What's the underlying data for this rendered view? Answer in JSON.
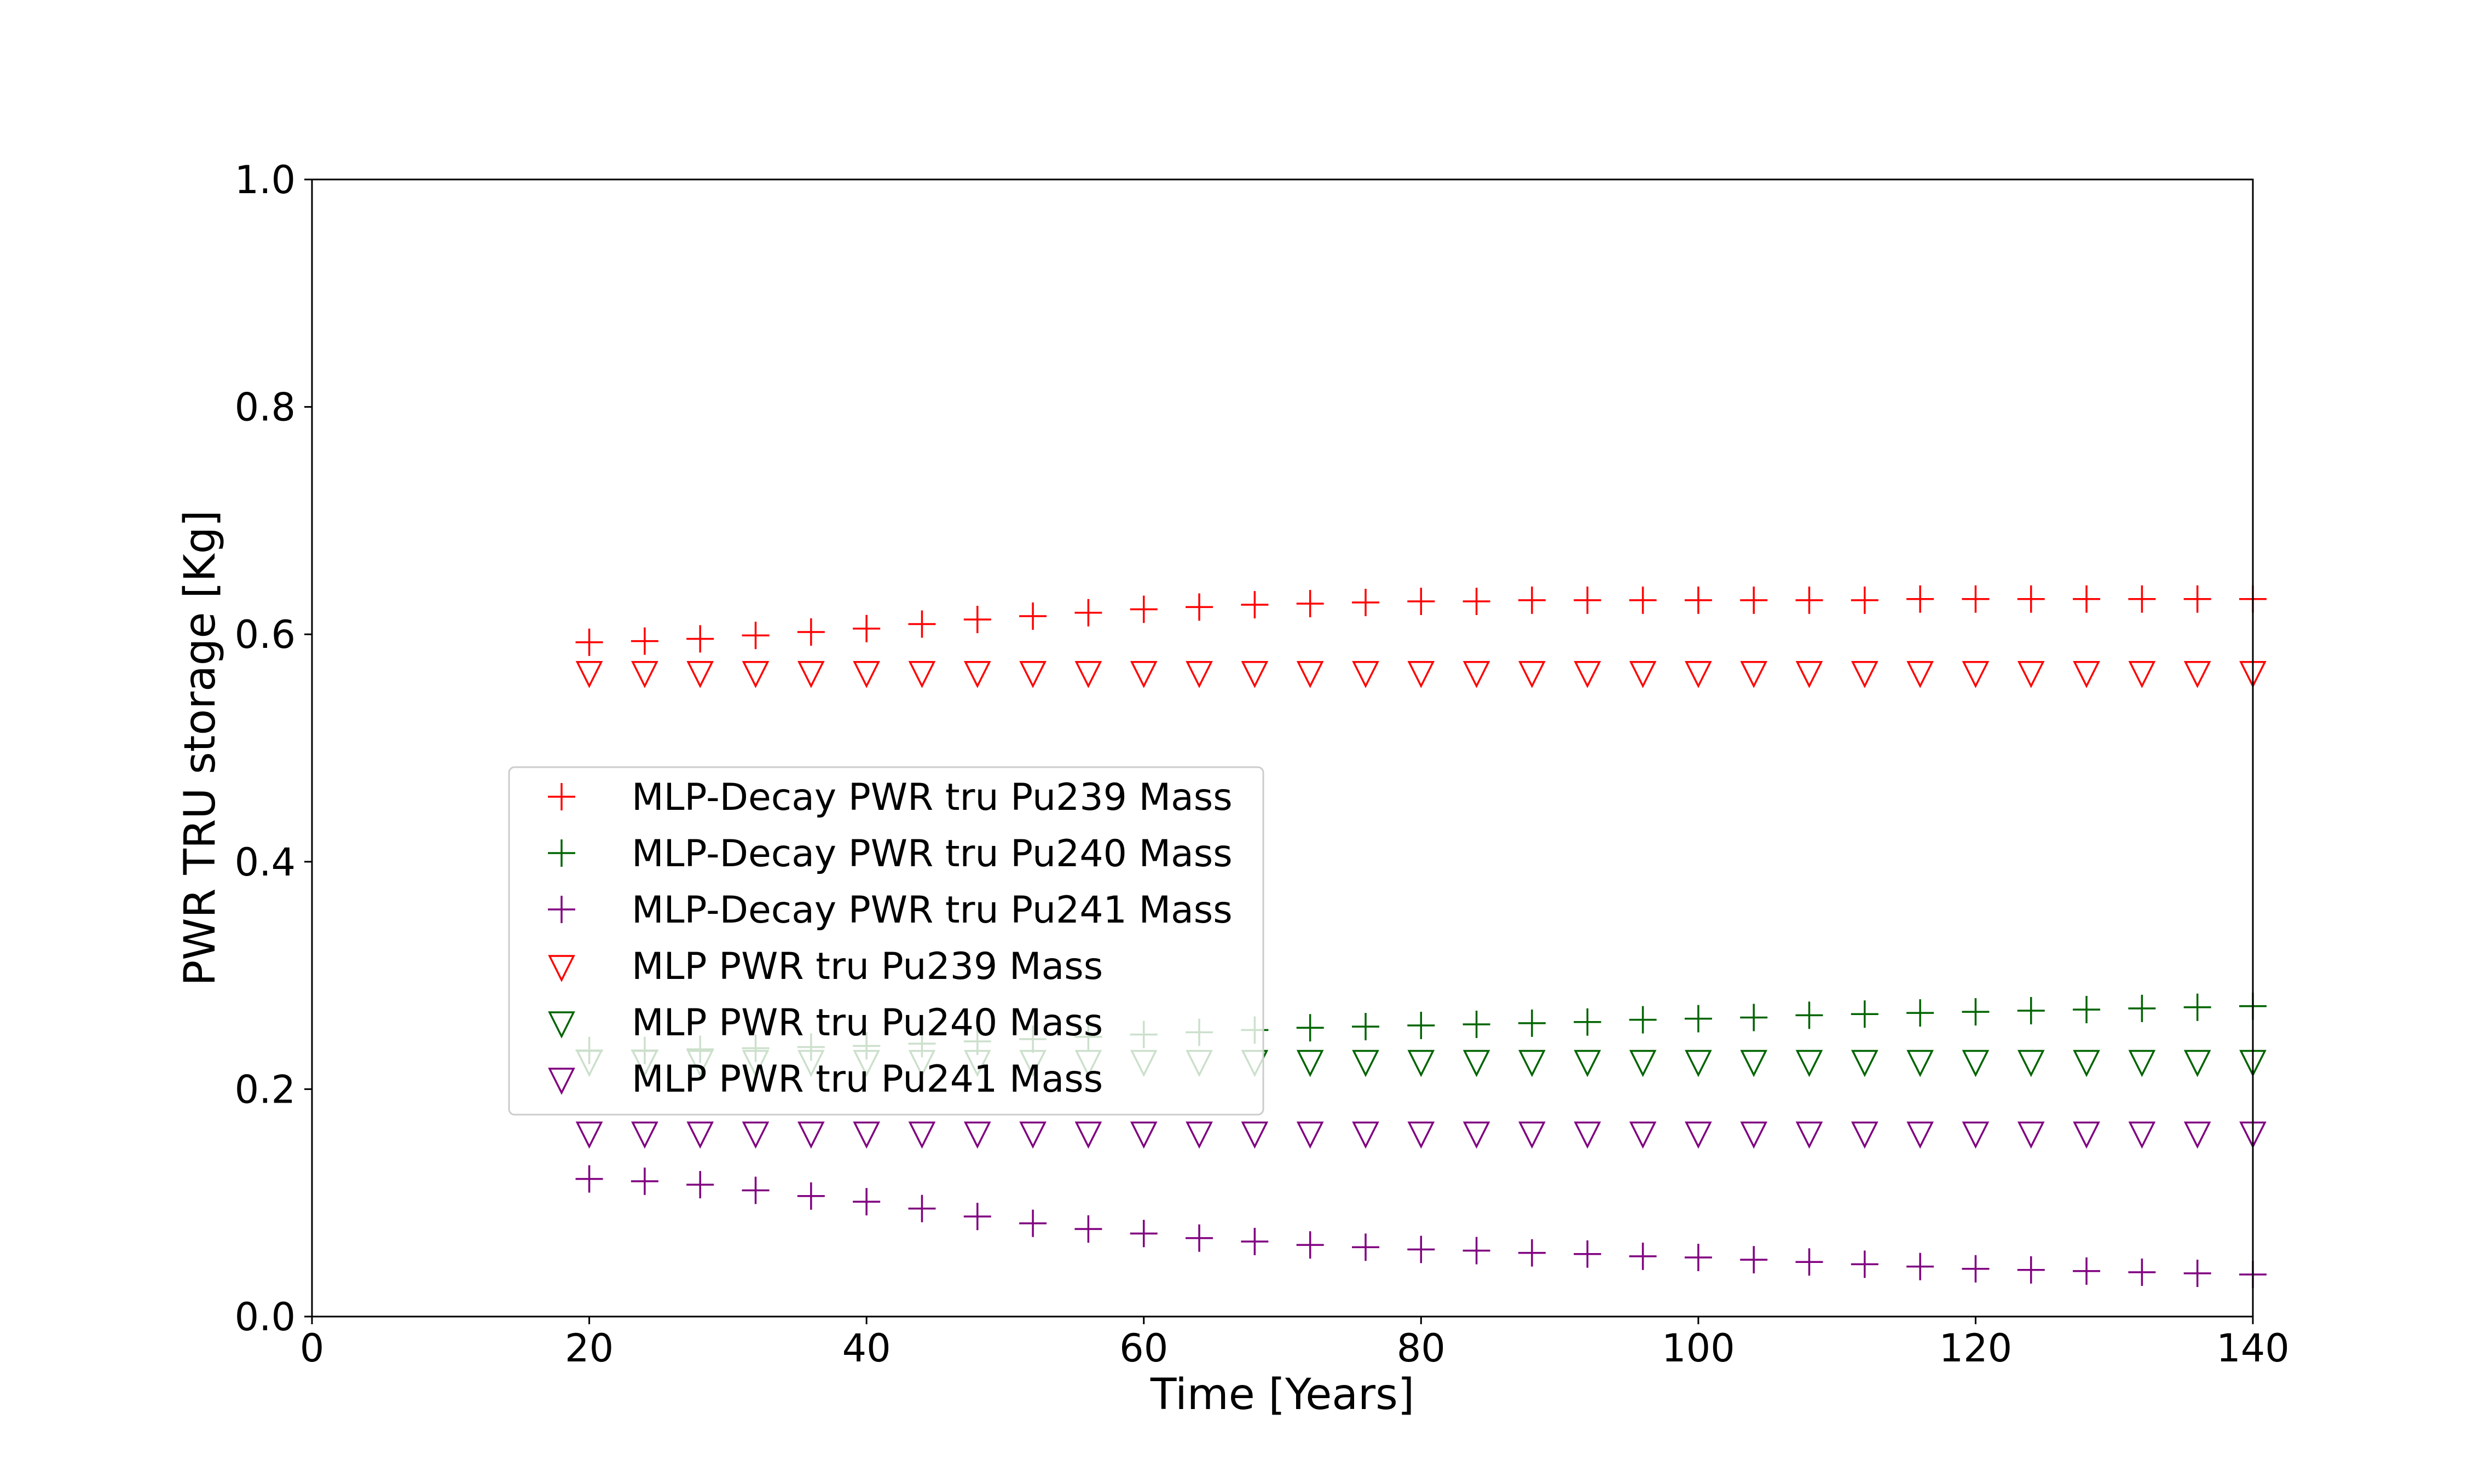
{
  "chart_data": {
    "type": "scatter",
    "title": "",
    "xlabel": "Time [Years]",
    "ylabel": "PWR TRU storage [Kg]",
    "xlim": [
      0,
      140
    ],
    "ylim": [
      0.0,
      1.0
    ],
    "xticks": [
      "0",
      "20",
      "40",
      "60",
      "80",
      "100",
      "120",
      "140"
    ],
    "yticks": [
      "0.0",
      "0.2",
      "0.4",
      "0.6",
      "0.8",
      "1.0"
    ],
    "grid": false,
    "legend_position": "center-left",
    "x": [
      20,
      24,
      28,
      32,
      36,
      40,
      44,
      48,
      52,
      56,
      60,
      64,
      68,
      72,
      76,
      80,
      84,
      88,
      92,
      96,
      100,
      104,
      108,
      112,
      116,
      120,
      124,
      128,
      132,
      136,
      140
    ],
    "series": [
      {
        "name": "MLP-Decay PWR tru Pu239 Mass",
        "marker": "plus",
        "color": "#ff0000",
        "values": [
          0.593,
          0.594,
          0.596,
          0.599,
          0.602,
          0.605,
          0.609,
          0.613,
          0.616,
          0.619,
          0.622,
          0.624,
          0.626,
          0.627,
          0.628,
          0.629,
          0.629,
          0.63,
          0.63,
          0.63,
          0.63,
          0.63,
          0.63,
          0.63,
          0.631,
          0.631,
          0.631,
          0.631,
          0.631,
          0.631,
          0.631
        ]
      },
      {
        "name": "MLP-Decay PWR tru Pu240 Mass",
        "marker": "plus",
        "color": "#006400",
        "values": [
          0.234,
          0.234,
          0.235,
          0.236,
          0.237,
          0.238,
          0.24,
          0.242,
          0.244,
          0.246,
          0.248,
          0.25,
          0.252,
          0.254,
          0.255,
          0.256,
          0.257,
          0.258,
          0.259,
          0.261,
          0.262,
          0.263,
          0.265,
          0.266,
          0.267,
          0.268,
          0.269,
          0.27,
          0.271,
          0.272,
          0.273
        ]
      },
      {
        "name": "MLP-Decay PWR tru Pu241 Mass",
        "marker": "plus",
        "color": "#800080",
        "values": [
          0.121,
          0.119,
          0.116,
          0.111,
          0.106,
          0.101,
          0.095,
          0.088,
          0.082,
          0.077,
          0.073,
          0.069,
          0.066,
          0.063,
          0.061,
          0.059,
          0.058,
          0.056,
          0.055,
          0.053,
          0.052,
          0.05,
          0.048,
          0.046,
          0.044,
          0.042,
          0.041,
          0.04,
          0.039,
          0.038,
          0.037
        ]
      },
      {
        "name": "MLP PWR tru Pu239 Mass",
        "marker": "triangle-down",
        "color": "#ff0000",
        "values": [
          0.567,
          0.567,
          0.567,
          0.567,
          0.567,
          0.567,
          0.567,
          0.567,
          0.567,
          0.567,
          0.567,
          0.567,
          0.567,
          0.567,
          0.567,
          0.567,
          0.567,
          0.567,
          0.567,
          0.567,
          0.567,
          0.567,
          0.567,
          0.567,
          0.567,
          0.567,
          0.567,
          0.567,
          0.567,
          0.567,
          0.567
        ]
      },
      {
        "name": "MLP PWR tru Pu240 Mass",
        "marker": "triangle-down",
        "color": "#006400",
        "values": [
          0.225,
          0.225,
          0.225,
          0.225,
          0.225,
          0.225,
          0.225,
          0.225,
          0.225,
          0.225,
          0.225,
          0.225,
          0.225,
          0.225,
          0.225,
          0.225,
          0.225,
          0.225,
          0.225,
          0.225,
          0.225,
          0.225,
          0.225,
          0.225,
          0.225,
          0.225,
          0.225,
          0.225,
          0.225,
          0.225,
          0.225
        ]
      },
      {
        "name": "MLP PWR tru Pu241 Mass",
        "marker": "triangle-down",
        "color": "#800080",
        "values": [
          0.162,
          0.162,
          0.162,
          0.162,
          0.162,
          0.162,
          0.162,
          0.162,
          0.162,
          0.162,
          0.162,
          0.162,
          0.162,
          0.162,
          0.162,
          0.162,
          0.162,
          0.162,
          0.162,
          0.162,
          0.162,
          0.162,
          0.162,
          0.162,
          0.162,
          0.162,
          0.162,
          0.162,
          0.162,
          0.162,
          0.162
        ]
      }
    ]
  }
}
